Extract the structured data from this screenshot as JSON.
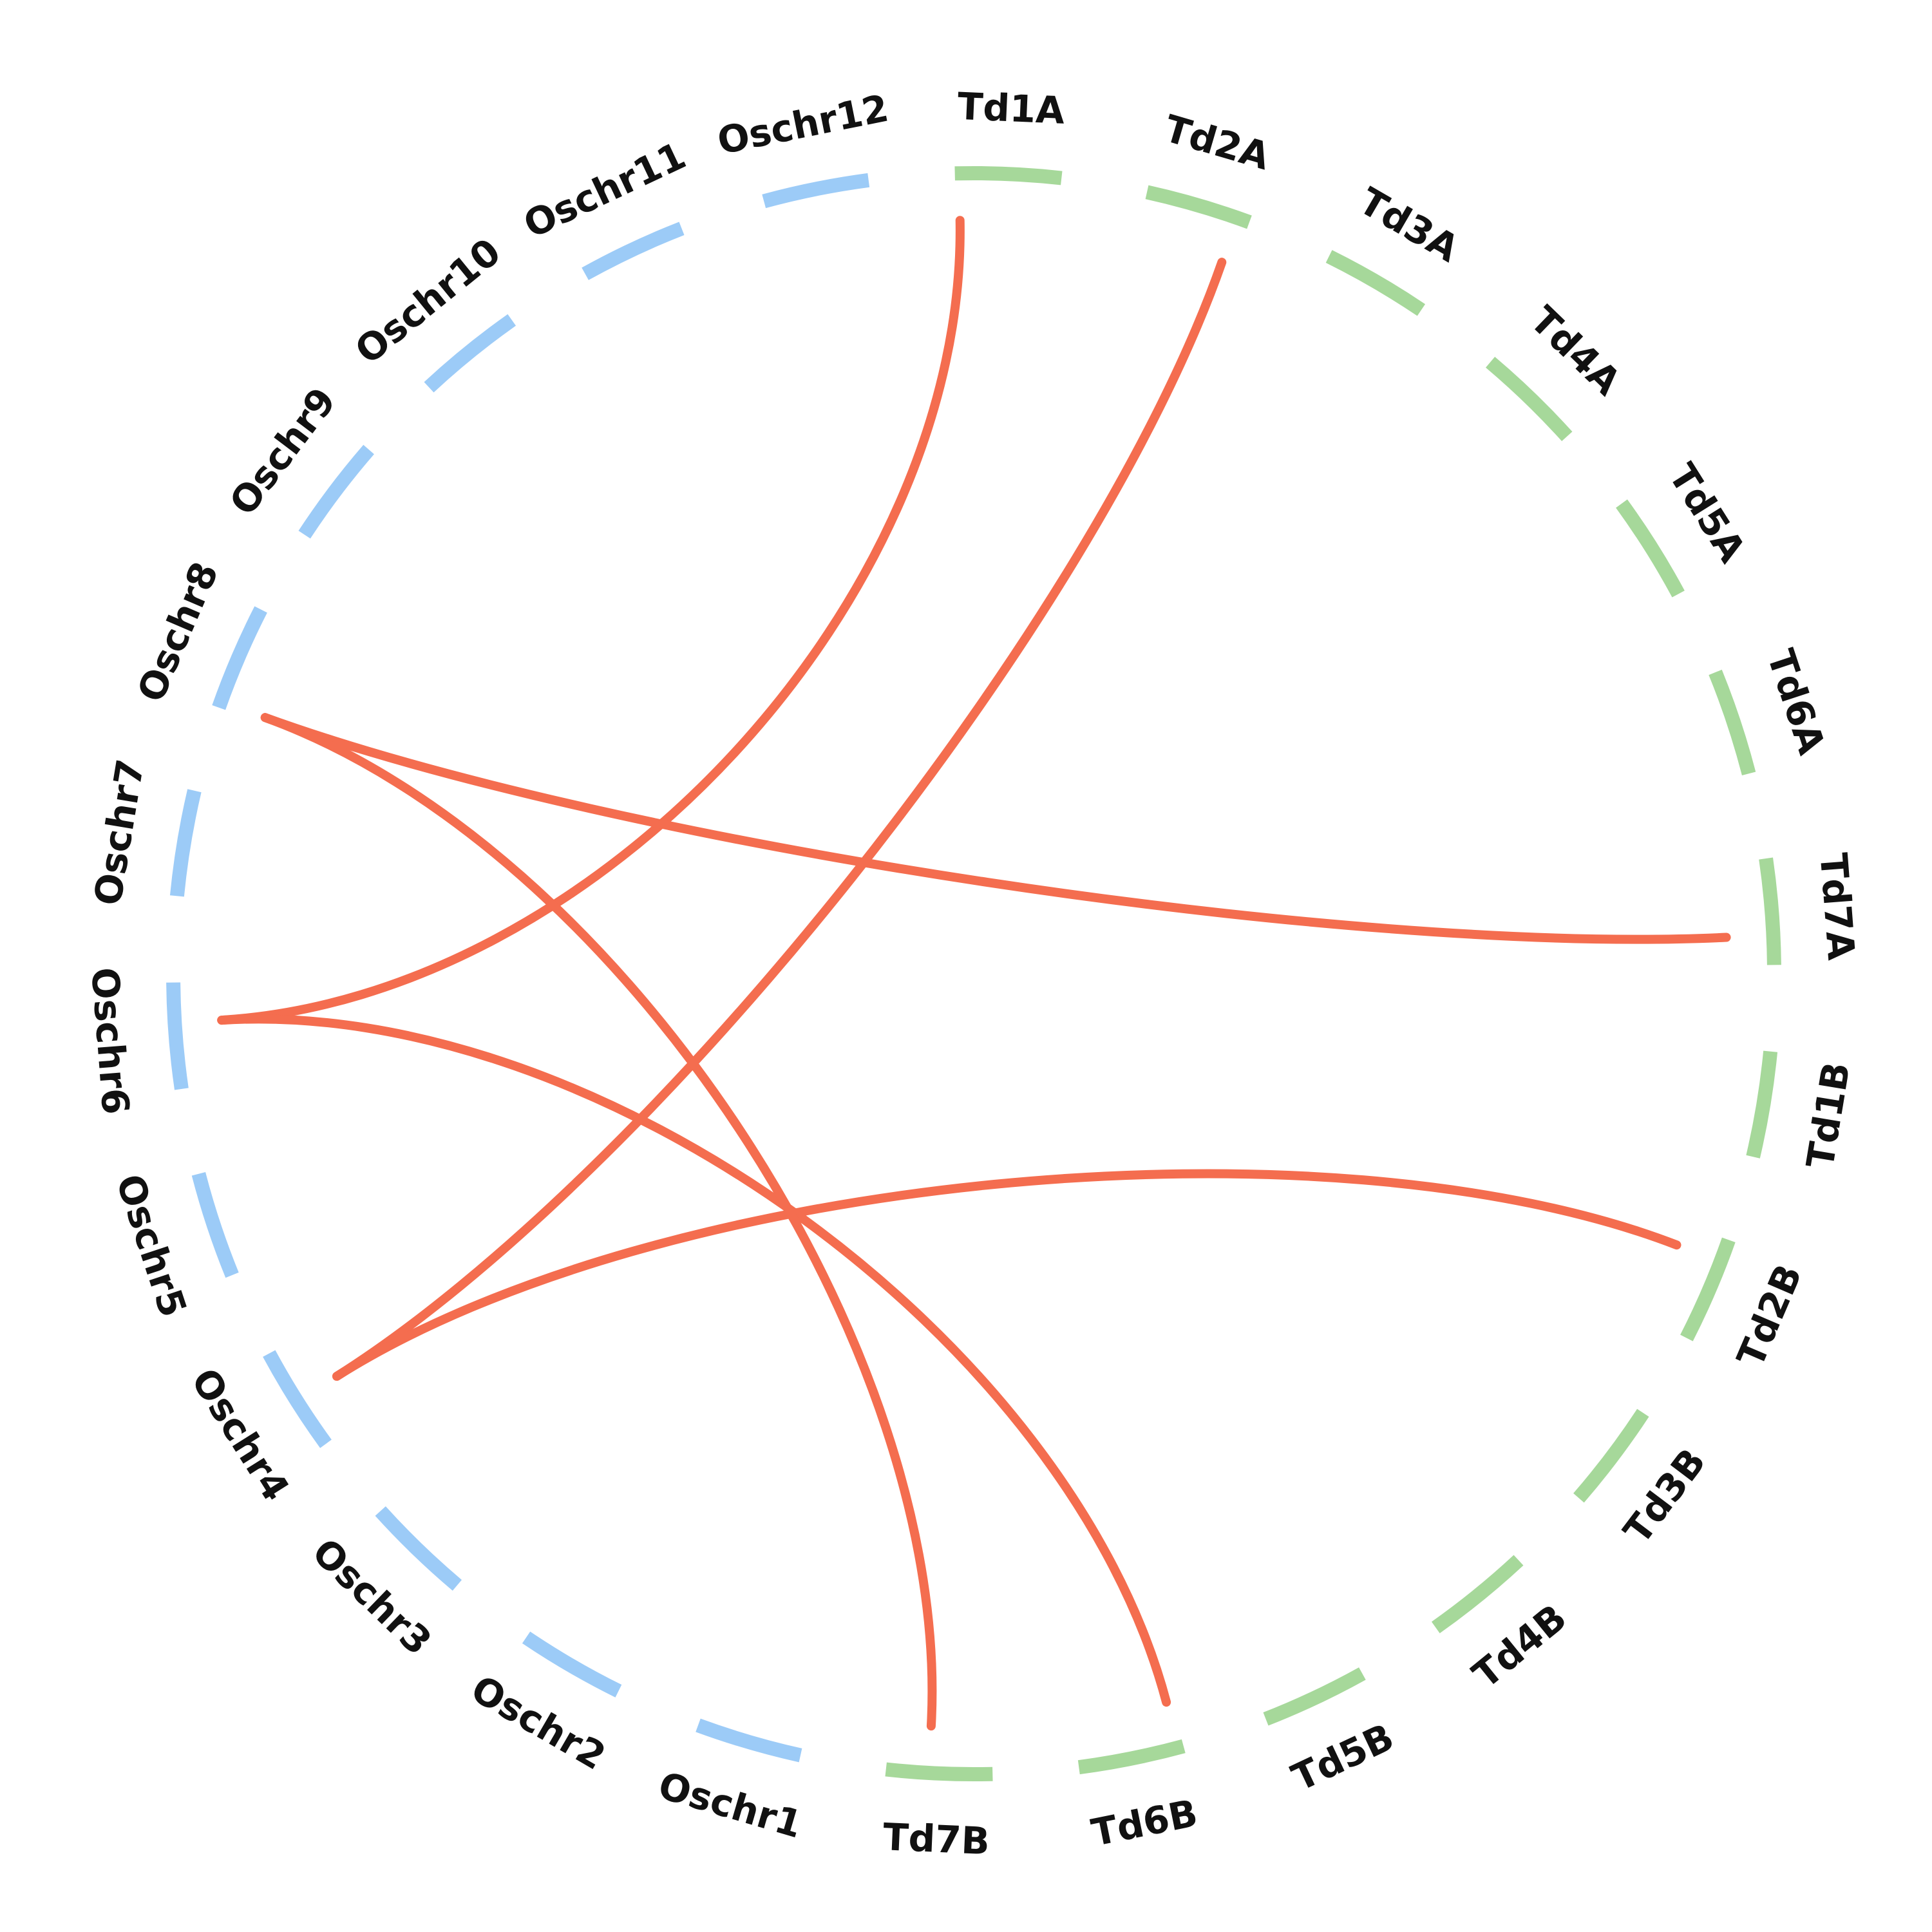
{
  "diagram": {
    "type": "circos",
    "colors": {
      "rice": "#9ccbf7",
      "wheat": "#a6d89a",
      "link": "#f46d4f"
    },
    "chromosomes": [
      {
        "id": "Td1A",
        "label": "Td1A",
        "species": "wheat"
      },
      {
        "id": "Td2A",
        "label": "Td2A",
        "species": "wheat"
      },
      {
        "id": "Td3A",
        "label": "Td3A",
        "species": "wheat"
      },
      {
        "id": "Td4A",
        "label": "Td4A",
        "species": "wheat"
      },
      {
        "id": "Td5A",
        "label": "Td5A",
        "species": "wheat"
      },
      {
        "id": "Td6A",
        "label": "Td6A",
        "species": "wheat"
      },
      {
        "id": "Td7A",
        "label": "Td7A",
        "species": "wheat"
      },
      {
        "id": "Td1B",
        "label": "Td1B",
        "species": "wheat"
      },
      {
        "id": "Td2B",
        "label": "Td2B",
        "species": "wheat"
      },
      {
        "id": "Td3B",
        "label": "Td3B",
        "species": "wheat"
      },
      {
        "id": "Td4B",
        "label": "Td4B",
        "species": "wheat"
      },
      {
        "id": "Td5B",
        "label": "Td5B",
        "species": "wheat"
      },
      {
        "id": "Td6B",
        "label": "Td6B",
        "species": "wheat"
      },
      {
        "id": "Td7B",
        "label": "Td7B",
        "species": "wheat"
      },
      {
        "id": "Oschr1",
        "label": "Oschr1",
        "species": "rice"
      },
      {
        "id": "Oschr2",
        "label": "Oschr2",
        "species": "rice"
      },
      {
        "id": "Oschr3",
        "label": "Oschr3",
        "species": "rice"
      },
      {
        "id": "Oschr4",
        "label": "Oschr4",
        "species": "rice"
      },
      {
        "id": "Oschr5",
        "label": "Oschr5",
        "species": "rice"
      },
      {
        "id": "Oschr6",
        "label": "Oschr6",
        "species": "rice"
      },
      {
        "id": "Oschr7",
        "label": "Oschr7",
        "species": "rice"
      },
      {
        "id": "Oschr8",
        "label": "Oschr8",
        "species": "rice"
      },
      {
        "id": "Oschr9",
        "label": "Oschr9",
        "species": "rice"
      },
      {
        "id": "Oschr10",
        "label": "Oschr10",
        "species": "rice"
      },
      {
        "id": "Oschr11",
        "label": "Oschr11",
        "species": "rice"
      },
      {
        "id": "Oschr12",
        "label": "Oschr12",
        "species": "rice"
      }
    ],
    "links": [
      {
        "from": "Oschr6",
        "to": "Td1A"
      },
      {
        "from": "Oschr4",
        "to": "Td2A"
      },
      {
        "from": "Oschr8",
        "to": "Td7A"
      },
      {
        "from": "Oschr4",
        "to": "Td2B"
      },
      {
        "from": "Oschr6",
        "to": "Td6B"
      },
      {
        "from": "Oschr8",
        "to": "Td7B"
      }
    ]
  }
}
